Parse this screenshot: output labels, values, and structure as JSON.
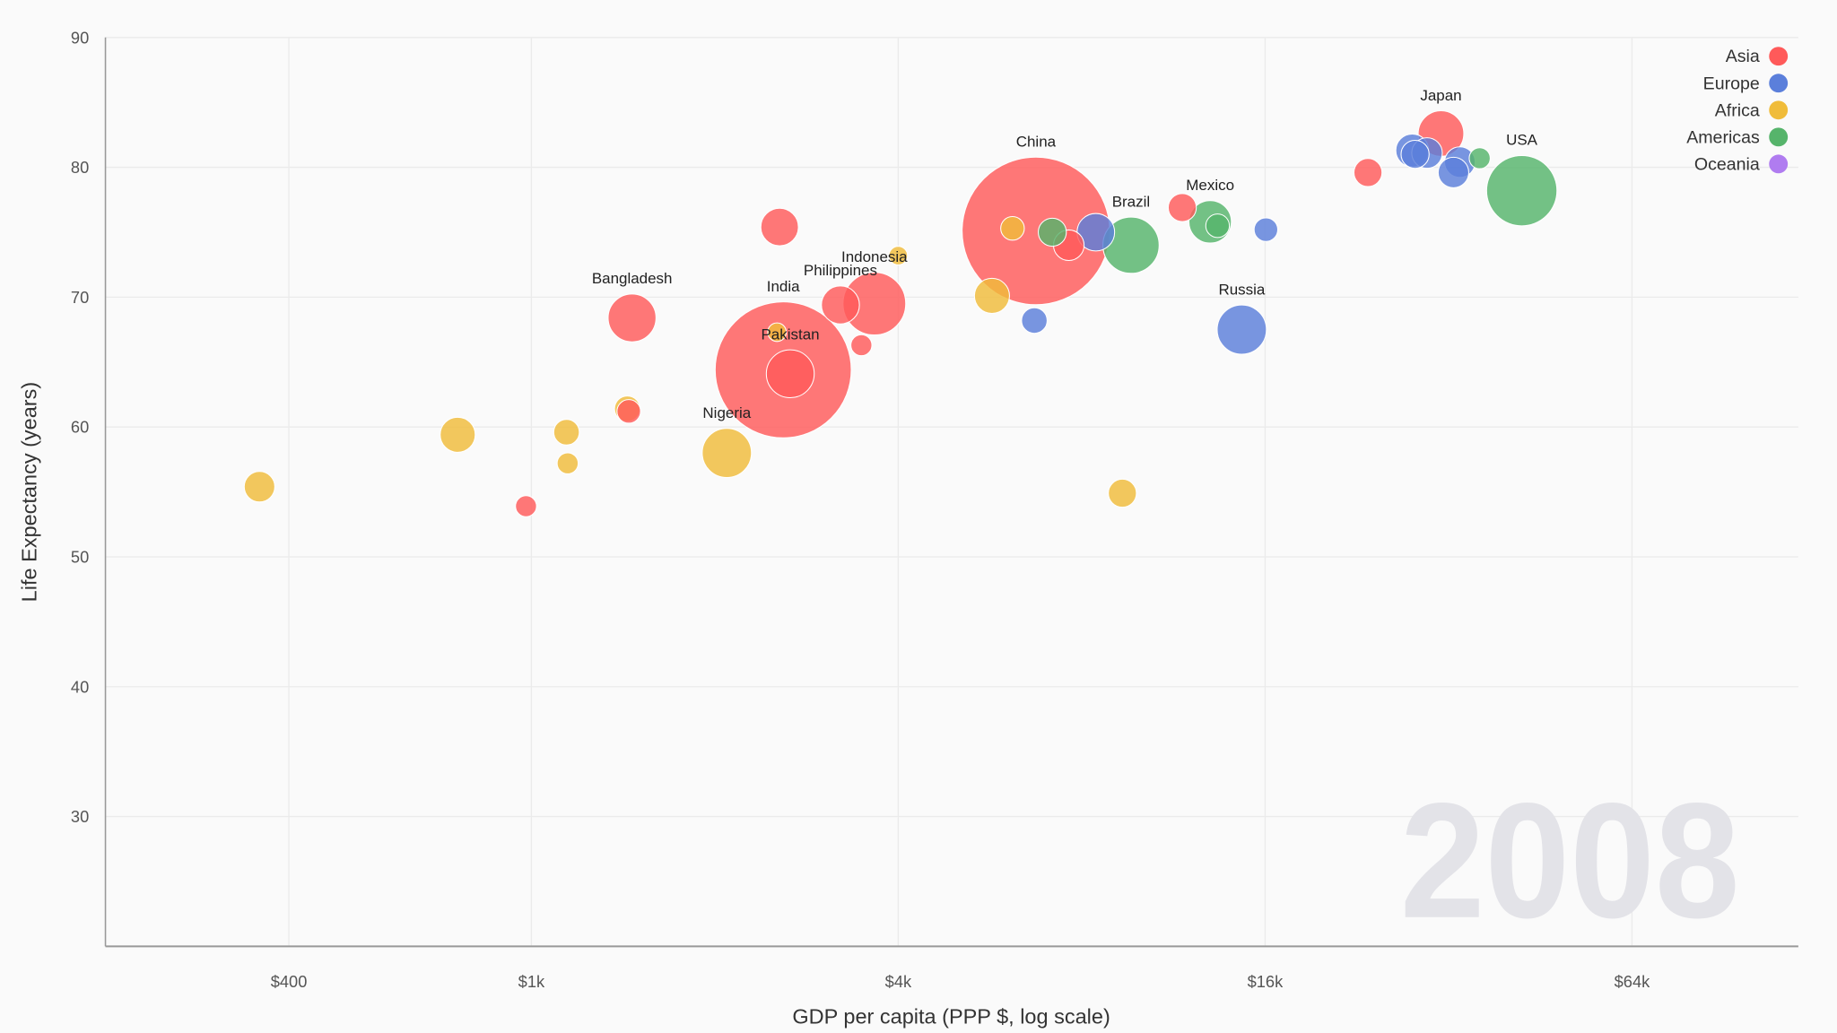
{
  "chart_data": {
    "type": "scatter",
    "subtype": "bubble",
    "year": "2008",
    "xlabel": "GDP per capita (PPP $, log scale)",
    "ylabel": "Life Expectancy (years)",
    "xscale": "log",
    "xlim": [
      200,
      120000
    ],
    "ylim": [
      20,
      90
    ],
    "xticks": [
      {
        "value": 400,
        "label": "$400"
      },
      {
        "value": 1000,
        "label": "$1k"
      },
      {
        "value": 4000,
        "label": "$4k"
      },
      {
        "value": 16000,
        "label": "$16k"
      },
      {
        "value": 64000,
        "label": "$64k"
      }
    ],
    "yticks": [
      30,
      40,
      50,
      60,
      70,
      80,
      90
    ],
    "grid": true,
    "legend_placement": "top-right",
    "size_encoding": "population (millions, estimated)",
    "legend": [
      {
        "name": "Asia",
        "color": "#ff5a5a"
      },
      {
        "name": "Europe",
        "color": "#5b7fdb"
      },
      {
        "name": "Africa",
        "color": "#f0bc3a"
      },
      {
        "name": "Americas",
        "color": "#56b46b"
      },
      {
        "name": "Oceania",
        "color": "#b07cf0"
      }
    ],
    "points": [
      {
        "label": "China",
        "region": "Asia",
        "gdp": 6730,
        "life": 75.1,
        "size": 1330
      },
      {
        "label": "India",
        "region": "Asia",
        "gdp": 2590,
        "life": 64.4,
        "size": 1130
      },
      {
        "label": "USA",
        "region": "Americas",
        "gdp": 42200,
        "life": 78.2,
        "size": 302
      },
      {
        "label": "Indonesia",
        "region": "Asia",
        "gdp": 3655,
        "life": 69.5,
        "size": 240
      },
      {
        "label": "Brazil",
        "region": "Americas",
        "gdp": 9640,
        "life": 74.0,
        "size": 193
      },
      {
        "label": "Pakistan",
        "region": "Asia",
        "gdp": 2660,
        "life": 64.1,
        "size": 140
      },
      {
        "label": "Bangladesh",
        "region": "Asia",
        "gdp": 1463,
        "life": 68.4,
        "size": 140
      },
      {
        "label": "Nigeria",
        "region": "Africa",
        "gdp": 2093,
        "life": 58.0,
        "size": 148
      },
      {
        "label": "Russia",
        "region": "Europe",
        "gdp": 14650,
        "life": 67.5,
        "size": 148
      },
      {
        "label": "Japan",
        "region": "Asia",
        "gdp": 31100,
        "life": 82.6,
        "size": 127
      },
      {
        "label": "Mexico",
        "region": "Americas",
        "gdp": 13000,
        "life": 75.8,
        "size": 110
      },
      {
        "label": "Philippines",
        "region": "Asia",
        "gdp": 3215,
        "life": 69.4,
        "size": 88
      },
      {
        "label": "",
        "region": "Asia",
        "gdp": 2555,
        "life": 75.4,
        "size": 86
      },
      {
        "label": "",
        "region": "Europe",
        "gdp": 8440,
        "life": 75.0,
        "size": 86
      },
      {
        "label": "",
        "region": "Africa",
        "gdp": 757,
        "life": 59.4,
        "size": 75
      },
      {
        "label": "",
        "region": "Africa",
        "gdp": 5700,
        "life": 70.1,
        "size": 75
      },
      {
        "label": "",
        "region": "Europe",
        "gdp": 27900,
        "life": 81.3,
        "size": 66
      },
      {
        "label": "",
        "region": "Asia",
        "gdp": 7620,
        "life": 74.0,
        "size": 57
      },
      {
        "label": "",
        "region": "Africa",
        "gdp": 358,
        "life": 55.4,
        "size": 57
      },
      {
        "label": "",
        "region": "Europe",
        "gdp": 29500,
        "life": 81.1,
        "size": 57
      },
      {
        "label": "",
        "region": "Europe",
        "gdp": 33400,
        "life": 80.4,
        "size": 57
      },
      {
        "label": "",
        "region": "Europe",
        "gdp": 32600,
        "life": 79.6,
        "size": 57
      },
      {
        "label": "",
        "region": "Asia",
        "gdp": 23600,
        "life": 79.6,
        "size": 48
      },
      {
        "label": "",
        "region": "Asia",
        "gdp": 11700,
        "life": 76.9,
        "size": 48
      },
      {
        "label": "",
        "region": "Europe",
        "gdp": 28200,
        "life": 81.0,
        "size": 48
      },
      {
        "label": "",
        "region": "Americas",
        "gdp": 7160,
        "life": 75.0,
        "size": 48
      },
      {
        "label": "",
        "region": "Africa",
        "gdp": 9330,
        "life": 54.9,
        "size": 48
      },
      {
        "label": "",
        "region": "Europe",
        "gdp": 6690,
        "life": 68.2,
        "size": 40
      },
      {
        "label": "",
        "region": "Africa",
        "gdp": 1142,
        "life": 59.6,
        "size": 40
      },
      {
        "label": "",
        "region": "Africa",
        "gdp": 1437,
        "life": 61.4,
        "size": 40
      },
      {
        "label": "",
        "region": "Asia",
        "gdp": 1445,
        "life": 61.2,
        "size": 34
      },
      {
        "label": "",
        "region": "Europe",
        "gdp": 16050,
        "life": 75.2,
        "size": 34
      },
      {
        "label": "",
        "region": "Africa",
        "gdp": 6160,
        "life": 75.3,
        "size": 34
      },
      {
        "label": "",
        "region": "Americas",
        "gdp": 13370,
        "life": 75.5,
        "size": 34
      },
      {
        "label": "",
        "region": "Asia",
        "gdp": 3480,
        "life": 66.3,
        "size": 27
      },
      {
        "label": "",
        "region": "Asia",
        "gdp": 980,
        "life": 53.9,
        "size": 27
      },
      {
        "label": "",
        "region": "Africa",
        "gdp": 1147,
        "life": 57.2,
        "size": 27
      },
      {
        "label": "",
        "region": "Americas",
        "gdp": 36000,
        "life": 80.7,
        "size": 27
      },
      {
        "label": "",
        "region": "Africa",
        "gdp": 2530,
        "life": 67.3,
        "size": 21
      },
      {
        "label": "",
        "region": "Africa",
        "gdp": 4000,
        "life": 73.2,
        "size": 21
      }
    ]
  }
}
